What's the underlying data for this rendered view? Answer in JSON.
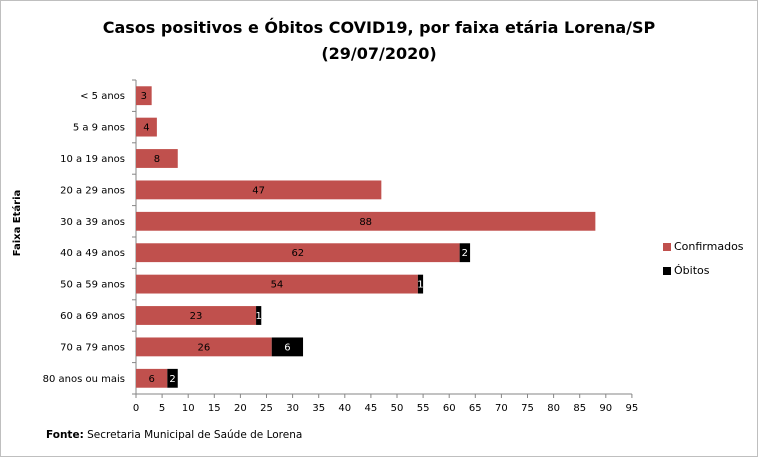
{
  "chart_data": {
    "type": "bar",
    "orientation": "horizontal",
    "stacked": true,
    "title_line1": "Casos positivos  e Óbitos COVID19, por faixa etária Lorena/SP",
    "title_line2": "(29/07/2020)",
    "ylabel": "Faixa Etária",
    "xlabel": "",
    "xlim": [
      0,
      95
    ],
    "xticks": [
      0,
      5,
      10,
      15,
      20,
      25,
      30,
      35,
      40,
      45,
      50,
      55,
      60,
      65,
      70,
      75,
      80,
      85,
      90,
      95
    ],
    "grid": false,
    "legend_position": "right",
    "categories": [
      "< 5 anos",
      "5 a 9 anos",
      "10 a 19 anos",
      "20 a 29 anos",
      "30 a 39 anos",
      "40 a 49 anos",
      "50 a 59 anos",
      "60 a 69 anos",
      "70 a 79 anos",
      "80 anos ou mais"
    ],
    "series": [
      {
        "name": "Confirmados",
        "color": "#c0504d",
        "values": [
          3,
          4,
          8,
          47,
          88,
          62,
          54,
          23,
          26,
          6
        ]
      },
      {
        "name": "Óbitos",
        "color": "#000000",
        "values": [
          null,
          null,
          null,
          null,
          null,
          2,
          1,
          1,
          6,
          2
        ]
      }
    ]
  },
  "source_label": "Fonte:",
  "source_text": " Secretaria Municipal de Saúde de Lorena"
}
